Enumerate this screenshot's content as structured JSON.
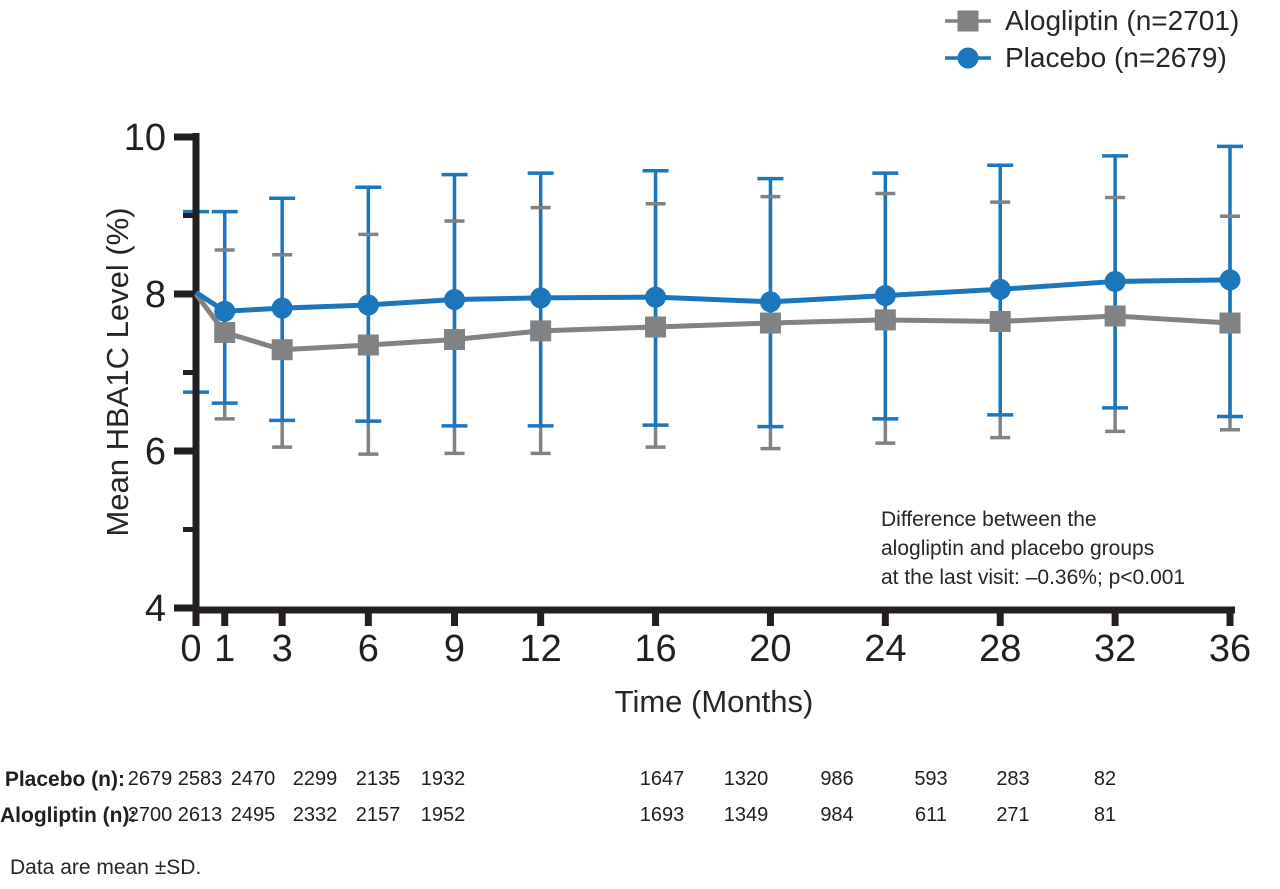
{
  "chart_data": {
    "type": "line",
    "x": [
      0,
      1,
      3,
      6,
      9,
      12,
      16,
      20,
      24,
      28,
      32,
      36
    ],
    "xlabel": "Time (Months)",
    "ylabel": "Mean HBA1C Level (%)",
    "ylim": [
      4,
      10
    ],
    "xlim": [
      0,
      36
    ],
    "yticks_major": [
      10,
      8,
      6,
      4
    ],
    "yticks_minor": [
      9,
      7,
      5
    ],
    "grid": false,
    "legend_position": "top-right",
    "error_bars": "±SD",
    "series": [
      {
        "name": "Alogliptin (n=2701)",
        "marker": "square",
        "color": "#818284",
        "values": [
          8.0,
          7.51,
          7.29,
          7.35,
          7.42,
          7.53,
          7.58,
          7.63,
          7.67,
          7.65,
          7.72,
          7.63
        ],
        "upper": [
          null,
          8.56,
          8.5,
          8.76,
          8.93,
          9.1,
          9.15,
          9.24,
          9.28,
          9.17,
          9.23,
          8.99
        ],
        "lower": [
          null,
          6.41,
          6.05,
          5.96,
          5.97,
          5.97,
          6.05,
          6.03,
          6.1,
          6.17,
          6.25,
          6.27
        ]
      },
      {
        "name": "Placebo (n=2679)",
        "marker": "circle",
        "color": "#1b76bc",
        "values": [
          8.02,
          7.78,
          7.82,
          7.86,
          7.93,
          7.95,
          7.96,
          7.9,
          7.98,
          8.06,
          8.16,
          8.18
        ],
        "upper": [
          9.05,
          9.05,
          9.22,
          9.36,
          9.52,
          9.54,
          9.57,
          9.47,
          9.54,
          9.64,
          9.76,
          9.88
        ],
        "lower": [
          6.75,
          6.61,
          6.39,
          6.38,
          6.32,
          6.32,
          6.33,
          6.31,
          6.41,
          6.46,
          6.55,
          6.44
        ]
      }
    ],
    "annotation": [
      "Difference between the",
      "alogliptin and placebo groups",
      "at the last visit: –0.36%; p<0.001"
    ]
  },
  "table": {
    "rows": [
      {
        "label": "Placebo (n):",
        "values": [
          "2679",
          "2583",
          "2470",
          "2299",
          "2135",
          "1932",
          "1647",
          "1320",
          "986",
          "593",
          "283",
          "82"
        ]
      },
      {
        "label": "Alogliptin (n):",
        "values": [
          "2700",
          "2613",
          "2495",
          "2332",
          "2157",
          "1952",
          "1693",
          "1349",
          "984",
          "611",
          "271",
          "81"
        ]
      }
    ]
  },
  "footer": "Data are mean ±SD.",
  "colors": {
    "placebo_blue": "#1b76bc",
    "alogliptin_gray": "#818284",
    "axis_black": "#231f20"
  }
}
